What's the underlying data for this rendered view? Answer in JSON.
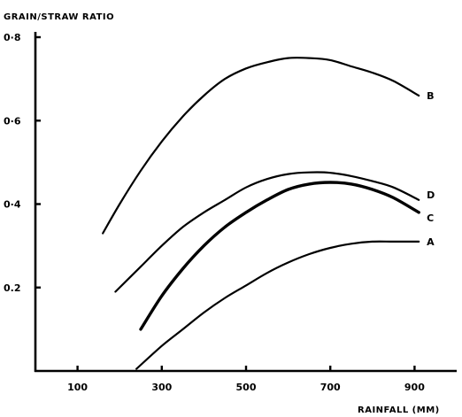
{
  "chart_data": {
    "type": "line",
    "ylabel": "GRAIN/STRAW RATIO",
    "xlabel": "RAINFALL (MM)",
    "xlim": [
      0,
      1000
    ],
    "ylim": [
      0,
      0.8
    ],
    "x_ticks": [
      100,
      300,
      500,
      700,
      900
    ],
    "x_tick_labels": [
      "100",
      "300",
      "500",
      "700",
      "900"
    ],
    "y_ticks": [
      0.2,
      0.4,
      0.6,
      0.8
    ],
    "y_tick_labels": [
      "0.2",
      "0·4",
      "0·6",
      "0·8"
    ],
    "grid": false,
    "series": [
      {
        "name": "B",
        "x": [
          160,
          200,
          250,
          300,
          350,
          400,
          450,
          500,
          550,
          600,
          650,
          700,
          750,
          800,
          850,
          910
        ],
        "values": [
          0.33,
          0.4,
          0.48,
          0.55,
          0.61,
          0.66,
          0.7,
          0.725,
          0.74,
          0.75,
          0.75,
          0.745,
          0.73,
          0.715,
          0.695,
          0.66
        ]
      },
      {
        "name": "D",
        "x": [
          190,
          250,
          300,
          350,
          400,
          450,
          500,
          550,
          600,
          650,
          700,
          750,
          800,
          850,
          910
        ],
        "values": [
          0.19,
          0.25,
          0.3,
          0.345,
          0.38,
          0.41,
          0.44,
          0.46,
          0.472,
          0.476,
          0.475,
          0.467,
          0.455,
          0.44,
          0.41
        ]
      },
      {
        "name": "C",
        "x": [
          250,
          300,
          350,
          400,
          450,
          500,
          550,
          600,
          650,
          700,
          750,
          800,
          850,
          910
        ],
        "values": [
          0.1,
          0.18,
          0.245,
          0.3,
          0.345,
          0.38,
          0.41,
          0.435,
          0.448,
          0.452,
          0.448,
          0.435,
          0.415,
          0.38
        ]
      },
      {
        "name": "A",
        "x": [
          240,
          300,
          350,
          400,
          450,
          500,
          550,
          600,
          650,
          700,
          750,
          800,
          850,
          910
        ],
        "values": [
          0.005,
          0.06,
          0.1,
          0.14,
          0.175,
          0.205,
          0.235,
          0.26,
          0.28,
          0.295,
          0.305,
          0.31,
          0.31,
          0.31
        ]
      }
    ]
  }
}
